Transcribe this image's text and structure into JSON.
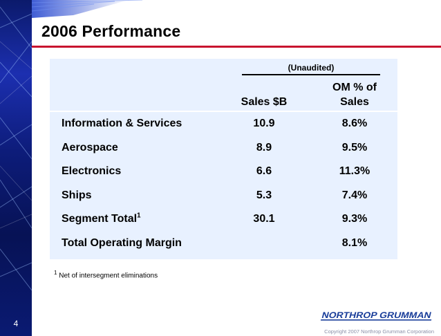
{
  "slide": {
    "number": "4",
    "title": "2006 Performance"
  },
  "table": {
    "group_header": "(Unaudited)",
    "columns": {
      "sales": "Sales $B",
      "om_line1": "OM % of",
      "om_line2": "Sales"
    },
    "rows": [
      {
        "label": "Information & Services",
        "footnote_mark": "",
        "sales": "10.9",
        "om": "8.6%"
      },
      {
        "label": "Aerospace",
        "footnote_mark": "",
        "sales": "8.9",
        "om": "9.5%"
      },
      {
        "label": "Electronics",
        "footnote_mark": "",
        "sales": "6.6",
        "om": "11.3%"
      },
      {
        "label": "Ships",
        "footnote_mark": "",
        "sales": "5.3",
        "om": "7.4%"
      },
      {
        "label": "Segment Total",
        "footnote_mark": "1",
        "sales": "30.1",
        "om": "9.3%"
      },
      {
        "label": "Total Operating Margin",
        "footnote_mark": "",
        "sales": "",
        "om": "8.1%"
      }
    ]
  },
  "footnote": {
    "mark": "1",
    "text": "Net of intersegment eliminations"
  },
  "branding": {
    "logo_text": "NORTHROP GRUMMAN",
    "copyright": "Copyright 2007 Northrop Grumman Corporation"
  },
  "colors": {
    "accent_rule": "#c8102e",
    "panel_background": "#e8f1ff",
    "logo_blue": "#1a3e9a"
  }
}
